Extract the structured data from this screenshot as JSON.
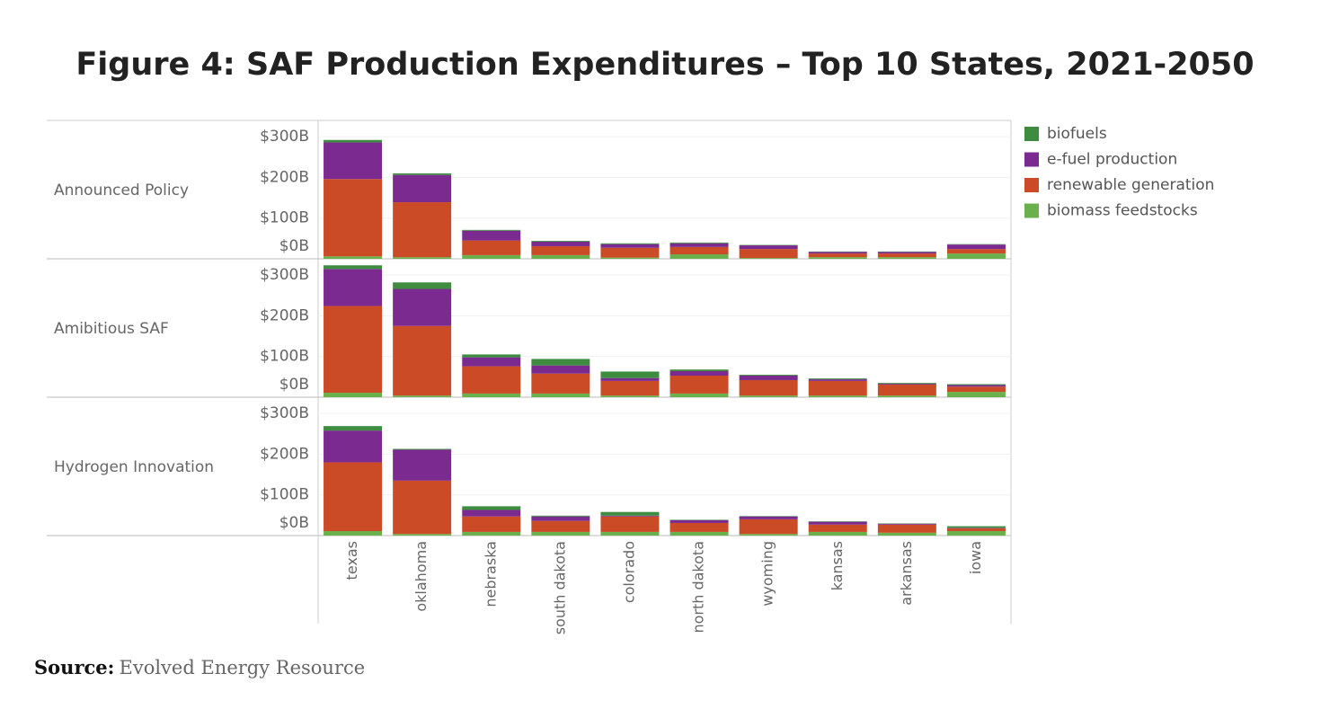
{
  "chart_data": {
    "type": "bar",
    "stacked": true,
    "title": "Figure 4: SAF Production Expenditures – Top 10 States, 2021-2050",
    "categories": [
      "texas",
      "oklahoma",
      "nebraska",
      "south dakota",
      "colorado",
      "north dakota",
      "wyoming",
      "kansas",
      "arkansas",
      "iowa"
    ],
    "series": [
      {
        "name": "biofuels",
        "color": "#3d8c40"
      },
      {
        "name": "e-fuel production",
        "color": "#7b2a90"
      },
      {
        "name": "renewable generation",
        "color": "#cc4b27"
      },
      {
        "name": "biomass feedstocks",
        "color": "#6ab04c"
      }
    ],
    "ylim": [
      0,
      340
    ],
    "yticks": [
      {
        "value": 0,
        "label": "$0B"
      },
      {
        "value": 100,
        "label": "$100B"
      },
      {
        "value": 200,
        "label": "$200B"
      },
      {
        "value": 300,
        "label": "$300B"
      }
    ],
    "grid": true,
    "panels": [
      {
        "label": "Announced Policy",
        "series": [
          {
            "values": [
              6,
              4,
              2,
              2,
              2,
              2,
              1,
              1,
              1,
              1
            ]
          },
          {
            "values": [
              90,
              67,
              24,
              11,
              9,
              9,
              9,
              4,
              4,
              11
            ]
          },
          {
            "values": [
              190,
              135,
              36,
              22,
              24,
              18,
              22,
              9,
              9,
              11
            ]
          },
          {
            "values": [
              6,
              4,
              9,
              9,
              3,
              11,
              2,
              4,
              4,
              13
            ]
          }
        ]
      },
      {
        "label": "Amibitious SAF",
        "series": [
          {
            "values": [
              9,
              16,
              7,
              16,
              16,
              4,
              2,
              2,
              2,
              2
            ]
          },
          {
            "values": [
              91,
              91,
              22,
              20,
              7,
              11,
              11,
              4,
              2,
              4
            ]
          },
          {
            "values": [
              213,
              171,
              67,
              49,
              36,
              44,
              38,
              36,
              27,
              13
            ]
          },
          {
            "values": [
              11,
              4,
              9,
              9,
              4,
              9,
              4,
              4,
              4,
              13
            ]
          }
        ]
      },
      {
        "label": "Hydrogen Innovation",
        "series": [
          {
            "values": [
              11,
              2,
              9,
              2,
              9,
              1,
              1,
              1,
              1,
              4
            ]
          },
          {
            "values": [
              78,
              76,
              16,
              11,
              2,
              7,
              7,
              7,
              2,
              1
            ]
          },
          {
            "values": [
              169,
              131,
              38,
              27,
              38,
              22,
              36,
              18,
              20,
              7
            ]
          },
          {
            "values": [
              11,
              4,
              9,
              9,
              9,
              9,
              4,
              9,
              7,
              11
            ]
          }
        ]
      }
    ]
  },
  "source": {
    "label": "Source:",
    "text": "Evolved Energy Resource"
  }
}
